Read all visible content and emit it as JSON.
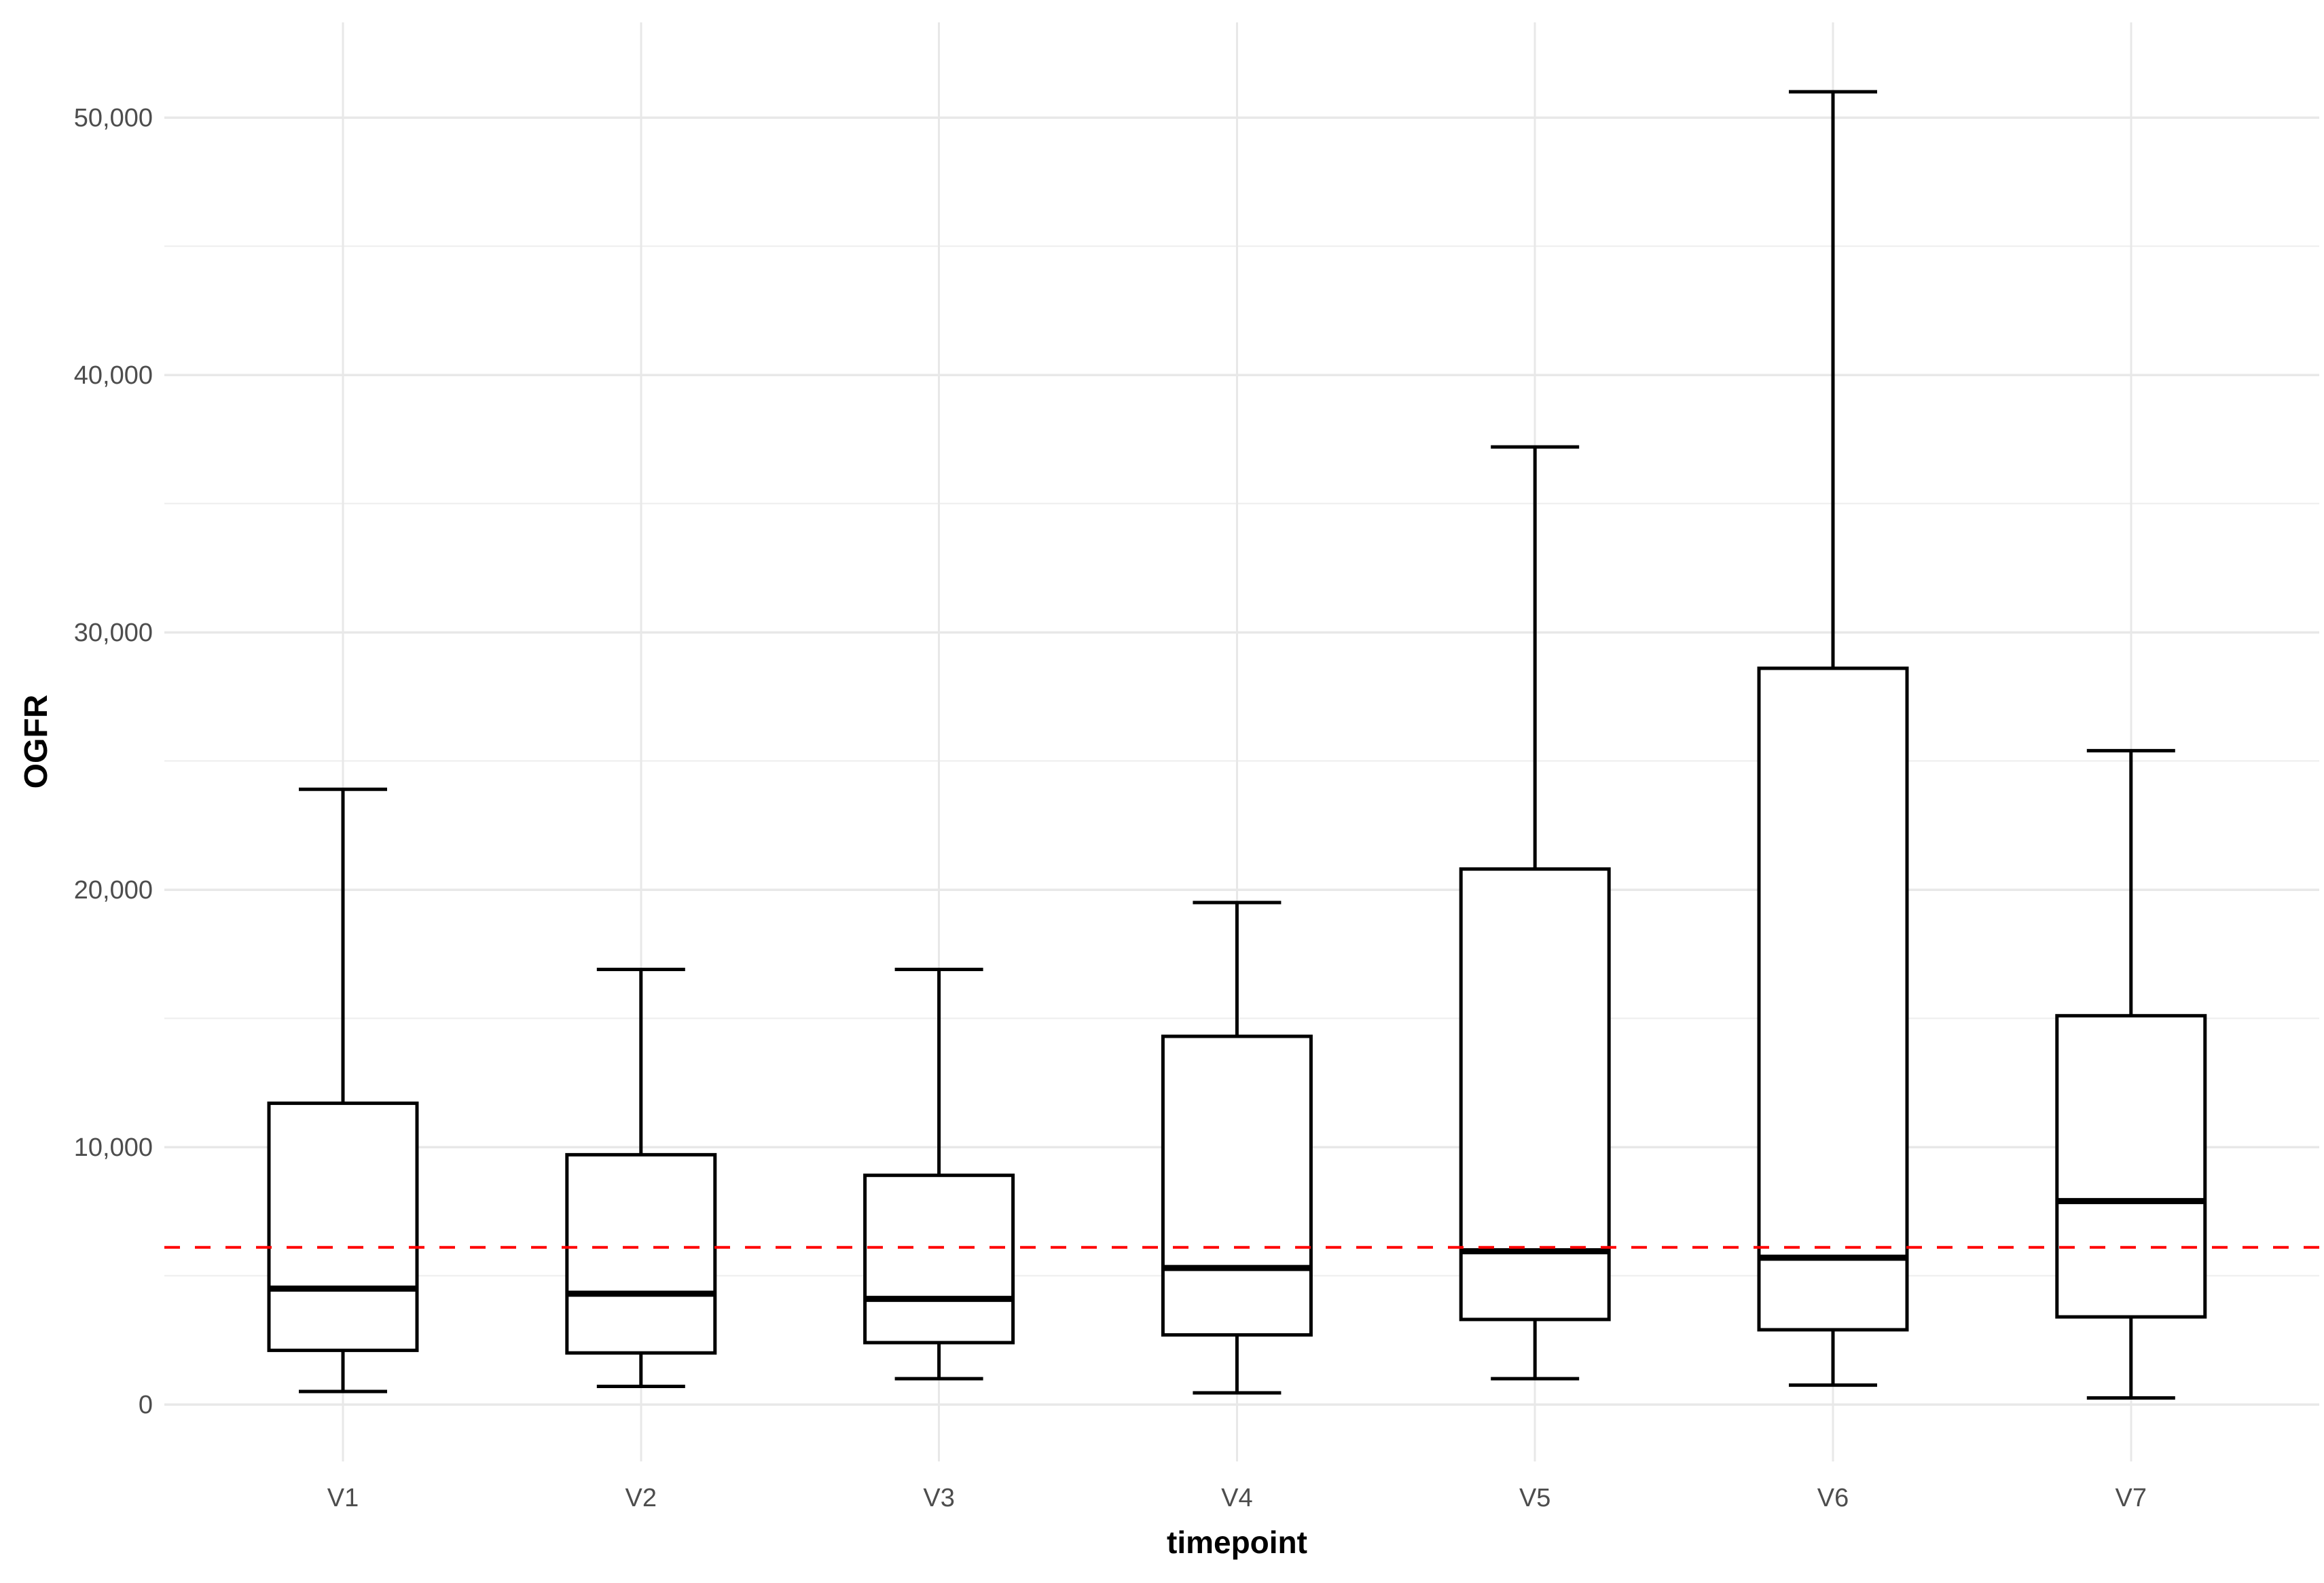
{
  "chart_data": {
    "type": "boxplot",
    "title": "",
    "xlabel": "timepoint",
    "ylabel": "OGFR",
    "categories": [
      "V1",
      "V2",
      "V3",
      "V4",
      "V5",
      "V6",
      "V7"
    ],
    "y_axis": {
      "min": 0,
      "max": 51000,
      "major_ticks": [
        0,
        10000,
        20000,
        30000,
        40000,
        50000
      ],
      "tick_labels": [
        "0",
        "10,000",
        "20,000",
        "30,000",
        "40,000",
        "50,000"
      ],
      "minor_ticks": [
        5000,
        15000,
        25000,
        35000,
        45000
      ],
      "grid": true
    },
    "boxes": [
      {
        "category": "V1",
        "min": 500,
        "q1": 2100,
        "median": 4500,
        "q3": 11700,
        "max": 23900
      },
      {
        "category": "V2",
        "min": 700,
        "q1": 2000,
        "median": 4300,
        "q3": 9700,
        "max": 16900
      },
      {
        "category": "V3",
        "min": 1000,
        "q1": 2400,
        "median": 4100,
        "q3": 8900,
        "max": 16900
      },
      {
        "category": "V4",
        "min": 450,
        "q1": 2700,
        "median": 5300,
        "q3": 14300,
        "max": 19500
      },
      {
        "category": "V5",
        "min": 1000,
        "q1": 3300,
        "median": 5950,
        "q3": 20800,
        "max": 37200
      },
      {
        "category": "V6",
        "min": 750,
        "q1": 2900,
        "median": 5700,
        "q3": 28600,
        "max": 51000
      },
      {
        "category": "V7",
        "min": 250,
        "q1": 3400,
        "median": 7900,
        "q3": 15100,
        "max": 25400
      }
    ],
    "reference_line": {
      "value": 6100,
      "color": "#ff0000",
      "style": "dashed"
    },
    "legend_position": "none"
  },
  "colors": {
    "background": "#ffffff",
    "grid_major": "#e8e8e8",
    "grid_minor": "#ededed",
    "box_stroke": "#000000",
    "box_fill": "#ffffff",
    "tick_label": "#4d4d4d",
    "axis_title": "#000000",
    "reference": "#ff0000"
  }
}
